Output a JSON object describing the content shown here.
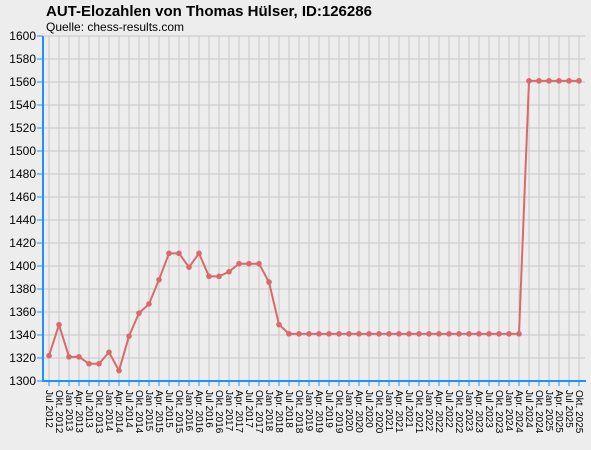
{
  "chart_data": {
    "type": "line",
    "title": "AUT-Elozahlen von Thomas Hülser, ID:126286",
    "subtitle": "Quelle: chess-results.com",
    "ylim": [
      1300,
      1600
    ],
    "yticks": [
      1300,
      1320,
      1340,
      1360,
      1380,
      1400,
      1420,
      1440,
      1460,
      1480,
      1500,
      1520,
      1540,
      1560,
      1580,
      1600
    ],
    "grid": true,
    "colors": {
      "line": "#d96a6a",
      "axis": "#1e90ff",
      "grid": "#c8c8c8"
    },
    "categories": [
      "Jul 2012",
      "Okt. 2012",
      "Jan 2013",
      "Apr. 2013",
      "Jul 2013",
      "Okt. 2013",
      "Jan 2014",
      "Apr. 2014",
      "Jul 2014",
      "Okt. 2014",
      "Jan 2015",
      "Apr. 2015",
      "Jul 2015",
      "Okt. 2015",
      "Jan 2016",
      "Apr. 2016",
      "Jul 2016",
      "Okt. 2016",
      "Jan 2017",
      "Apr. 2017",
      "Jul 2017",
      "Okt. 2017",
      "Jan 2018",
      "Apr. 2018",
      "Jul 2018",
      "Okt. 2018",
      "Jan 2019",
      "Apr. 2019",
      "Jul 2019",
      "Okt. 2019",
      "Jan 2020",
      "Apr. 2020",
      "Jul 2020",
      "Okt. 2020",
      "Jan 2021",
      "Apr. 2021",
      "Jul 2021",
      "Okt. 2021",
      "Jan 2022",
      "Apr. 2022",
      "Jul 2022",
      "Okt. 2022",
      "Jan 2023",
      "Apr. 2023",
      "Jul 2023",
      "Okt. 2023",
      "Jan 2024",
      "Apr. 2024",
      "Jul 2024",
      "Okt. 2024",
      "Jan 2025",
      "Apr. 2025",
      "Jul 2025",
      "Okt. 2025"
    ],
    "values": [
      1322,
      1349,
      1321,
      1321,
      1315,
      1315,
      1325,
      1309,
      1339,
      1359,
      1367,
      1388,
      1411,
      1411,
      1399,
      1411,
      1391,
      1391,
      1395,
      1402,
      1402,
      1402,
      1386,
      1349,
      1341,
      1341,
      1341,
      1341,
      1341,
      1341,
      1341,
      1341,
      1341,
      1341,
      1341,
      1341,
      1341,
      1341,
      1341,
      1341,
      1341,
      1341,
      1341,
      1341,
      1341,
      1341,
      1341,
      1341,
      1561,
      1561,
      1561,
      1561,
      1561,
      1561
    ]
  }
}
